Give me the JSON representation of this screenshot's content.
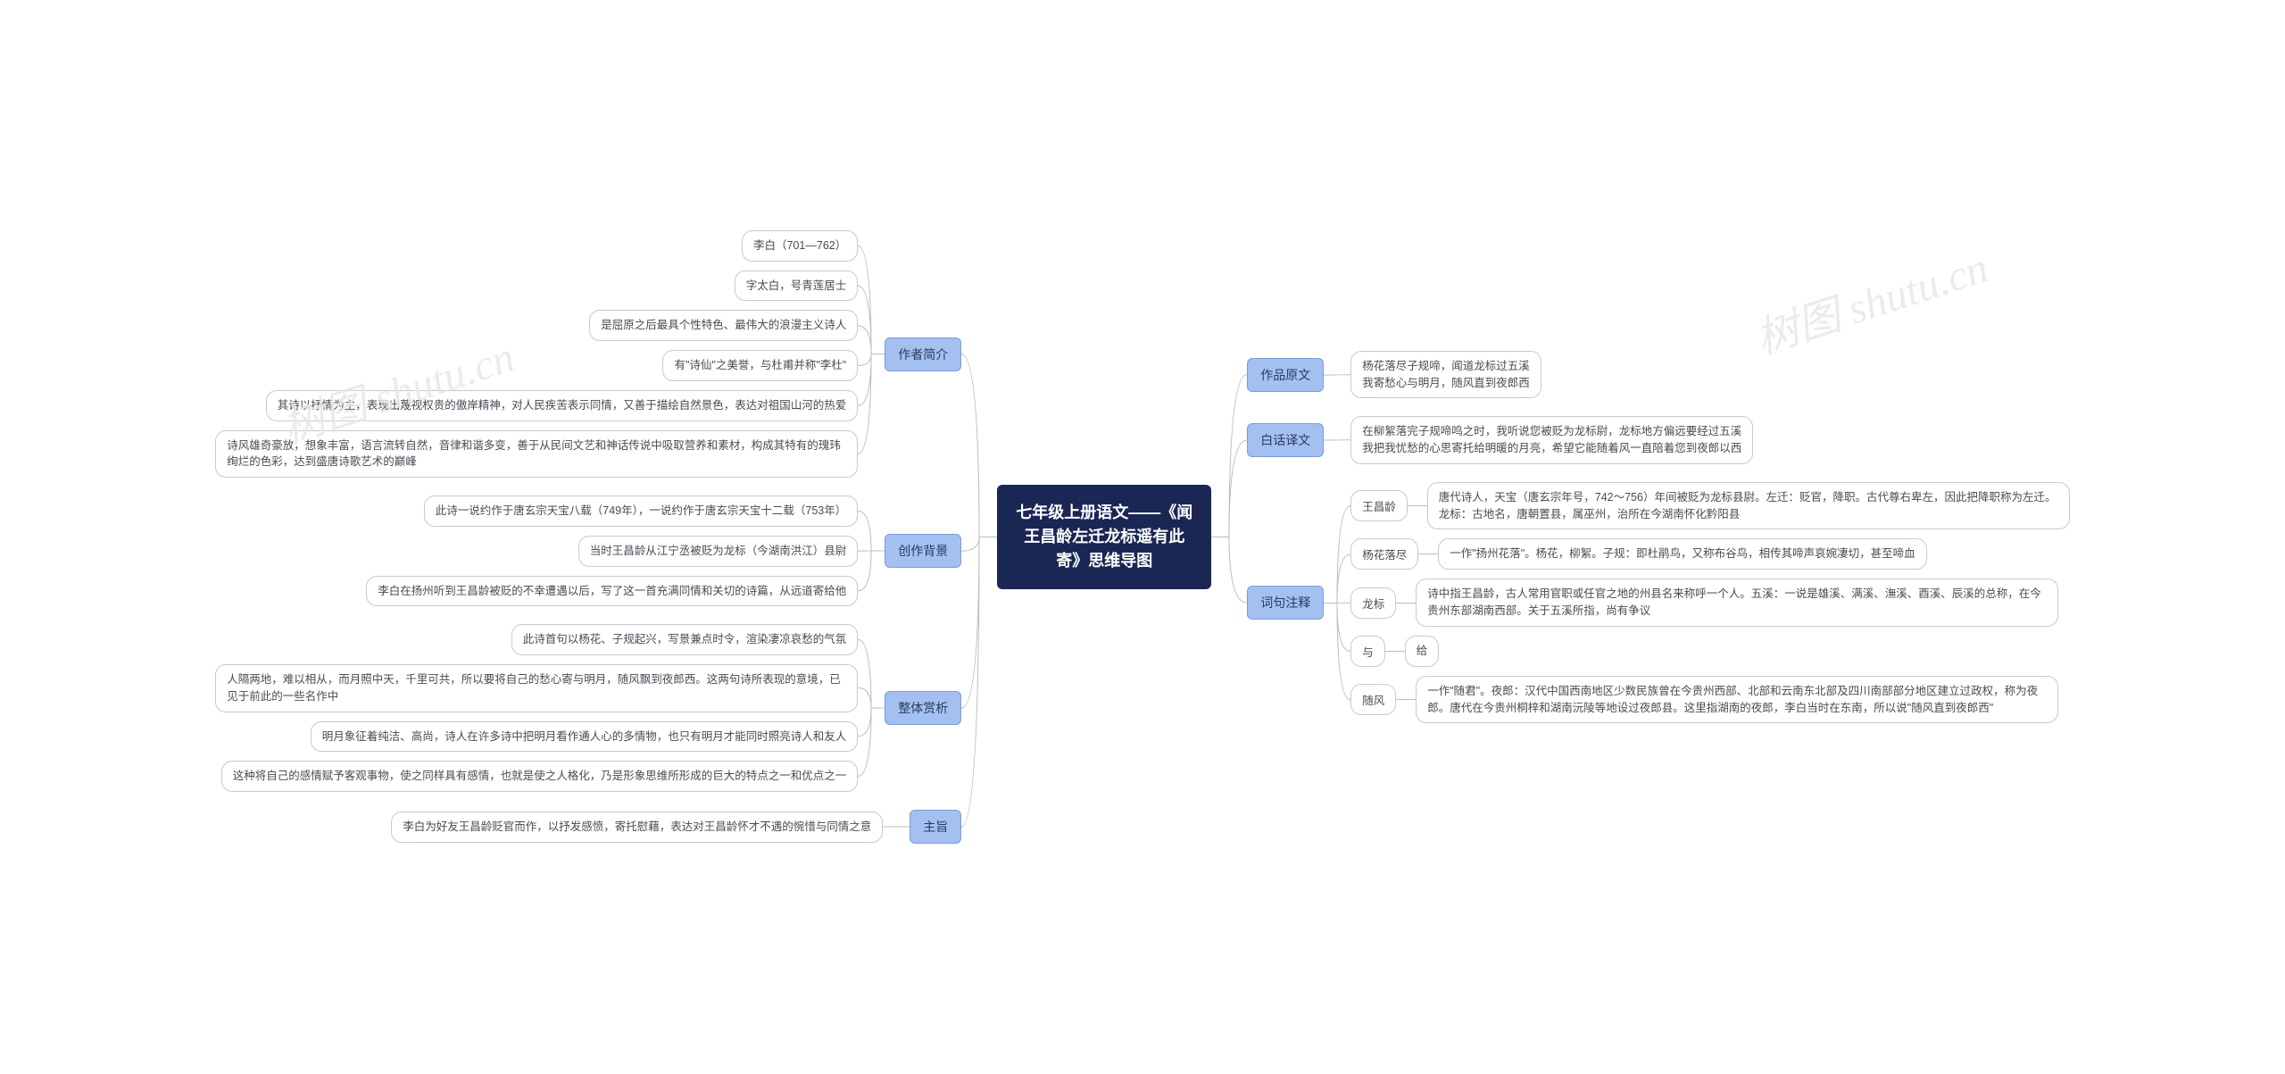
{
  "center": "七年级上册语文——《闻王昌龄左迁龙标遥有此寄》思维导图",
  "watermark": "树图 shutu.cn",
  "colors": {
    "center_bg": "#1a2654",
    "center_text": "#ffffff",
    "branch_bg": "#a3c0f0",
    "branch_border": "#7a9dd8",
    "leaf_border": "#c5c9d0",
    "leaf_bg": "#ffffff",
    "connector": "#b8bcc4",
    "text": "#4a4a55"
  },
  "left": [
    {
      "title": "作者简介",
      "children": [
        {
          "text": "李白（701—762）"
        },
        {
          "text": "字太白，号青莲居士"
        },
        {
          "text": "是屈原之后最具个性特色、最伟大的浪漫主义诗人"
        },
        {
          "text": "有\"诗仙\"之美誉，与杜甫并称\"李杜\""
        },
        {
          "text": "其诗以抒情为主，表现出蔑视权贵的傲岸精神，对人民疾苦表示同情，又善于描绘自然景色，表达对祖国山河的热爱"
        },
        {
          "text": "诗风雄奇豪放，想象丰富，语言流转自然，音律和谐多变，善于从民间文艺和神话传说中吸取营养和素材，构成其特有的瑰玮绚烂的色彩，达到盛唐诗歌艺术的巅峰"
        }
      ]
    },
    {
      "title": "创作背景",
      "children": [
        {
          "text": "此诗一说约作于唐玄宗天宝八载（749年），一说约作于唐玄宗天宝十二载（753年）"
        },
        {
          "text": "当时王昌龄从江宁丞被贬为龙标（今湖南洪江）县尉"
        },
        {
          "text": "李白在扬州听到王昌龄被贬的不幸遭遇以后，写了这一首充满同情和关切的诗篇，从远道寄给他"
        }
      ]
    },
    {
      "title": "整体赏析",
      "children": [
        {
          "text": "此诗首句以杨花、子规起兴，写景兼点时令，渲染凄凉哀愁的气氛"
        },
        {
          "text": "人隔两地，难以相从，而月照中天，千里可共，所以要将自己的愁心寄与明月，随风飘到夜郎西。这两句诗所表现的意境，已见于前此的一些名作中"
        },
        {
          "text": "明月象征着纯洁、高尚，诗人在许多诗中把明月看作通人心的多情物，也只有明月才能同时照亮诗人和友人"
        },
        {
          "text": "这种将自己的感情赋予客观事物，使之同样具有感情，也就是使之人格化，乃是形象思维所形成的巨大的特点之一和优点之一"
        }
      ]
    },
    {
      "title": "主旨",
      "children": [
        {
          "text": "李白为好友王昌龄贬官而作，以抒发感愤，寄托慰藉，表达对王昌龄怀才不遇的惋惜与同情之意"
        }
      ]
    }
  ],
  "right": [
    {
      "title": "作品原文",
      "children": [
        {
          "text": "杨花落尽子规啼，闻道龙标过五溪\n我寄愁心与明月，随风直到夜郎西"
        }
      ]
    },
    {
      "title": "白话译文",
      "children": [
        {
          "text": "在柳絮落完子规啼鸣之时，我听说您被贬为龙标尉，龙标地方偏远要经过五溪\n我把我忧愁的心思寄托给明暖的月亮，希望它能随着风一直陪着您到夜郎以西"
        }
      ]
    },
    {
      "title": "词句注释",
      "children": [
        {
          "sub": "王昌龄",
          "text": "唐代诗人，天宝（唐玄宗年号，742～756）年间被贬为龙标县尉。左迁：贬官，降职。古代尊右卑左，因此把降职称为左迁。龙标：古地名，唐朝置县，属巫州，治所在今湖南怀化黔阳县"
        },
        {
          "sub": "杨花落尽",
          "text": "一作\"扬州花落\"。杨花，柳絮。子规：即杜鹃鸟，又称布谷鸟，相传其啼声哀婉凄切，甚至啼血"
        },
        {
          "sub": "龙标",
          "text": "诗中指王昌龄，古人常用官职或任官之地的州县名来称呼一个人。五溪：一说是雄溪、满溪、潕溪、酉溪、辰溪的总称，在今贵州东部湖南西部。关于五溪所指，尚有争议"
        },
        {
          "sub": "与",
          "text": "给"
        },
        {
          "sub": "随风",
          "text": "一作\"随君\"。夜郎：汉代中国西南地区少数民族曾在今贵州西部、北部和云南东北部及四川南部部分地区建立过政权，称为夜郎。唐代在今贵州桐梓和湖南沅陵等地设过夜郎县。这里指湖南的夜郎，李白当时在东南，所以说\"随风直到夜郎西\""
        }
      ]
    }
  ]
}
